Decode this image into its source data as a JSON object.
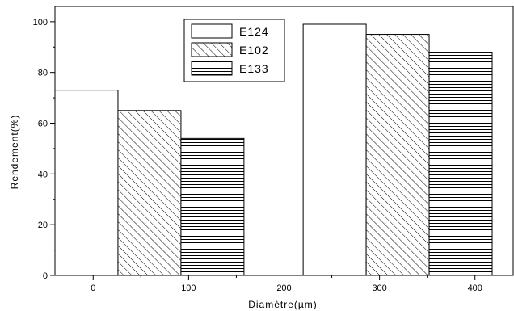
{
  "chart_data": {
    "type": "bar",
    "title": "",
    "xlabel": "Diamètre(µm)",
    "ylabel": "Rendement(%)",
    "xlim": [
      -40,
      440
    ],
    "ylim": [
      0,
      106
    ],
    "x_ticks": [
      0,
      100,
      200,
      300,
      400
    ],
    "y_ticks": [
      0,
      20,
      40,
      60,
      80,
      100
    ],
    "legend_position": "top-center",
    "grid": false,
    "bar_groups": [
      {
        "x_range": [
          -40,
          158
        ]
      },
      {
        "x_range": [
          220,
          418
        ]
      }
    ],
    "series": [
      {
        "name": "E124",
        "fill": "blank",
        "values": [
          73,
          99
        ]
      },
      {
        "name": "E102",
        "fill": "diagonal-hatch",
        "values": [
          65,
          95
        ]
      },
      {
        "name": "E133",
        "fill": "horizontal-hatch",
        "values": [
          54,
          88
        ]
      }
    ]
  }
}
